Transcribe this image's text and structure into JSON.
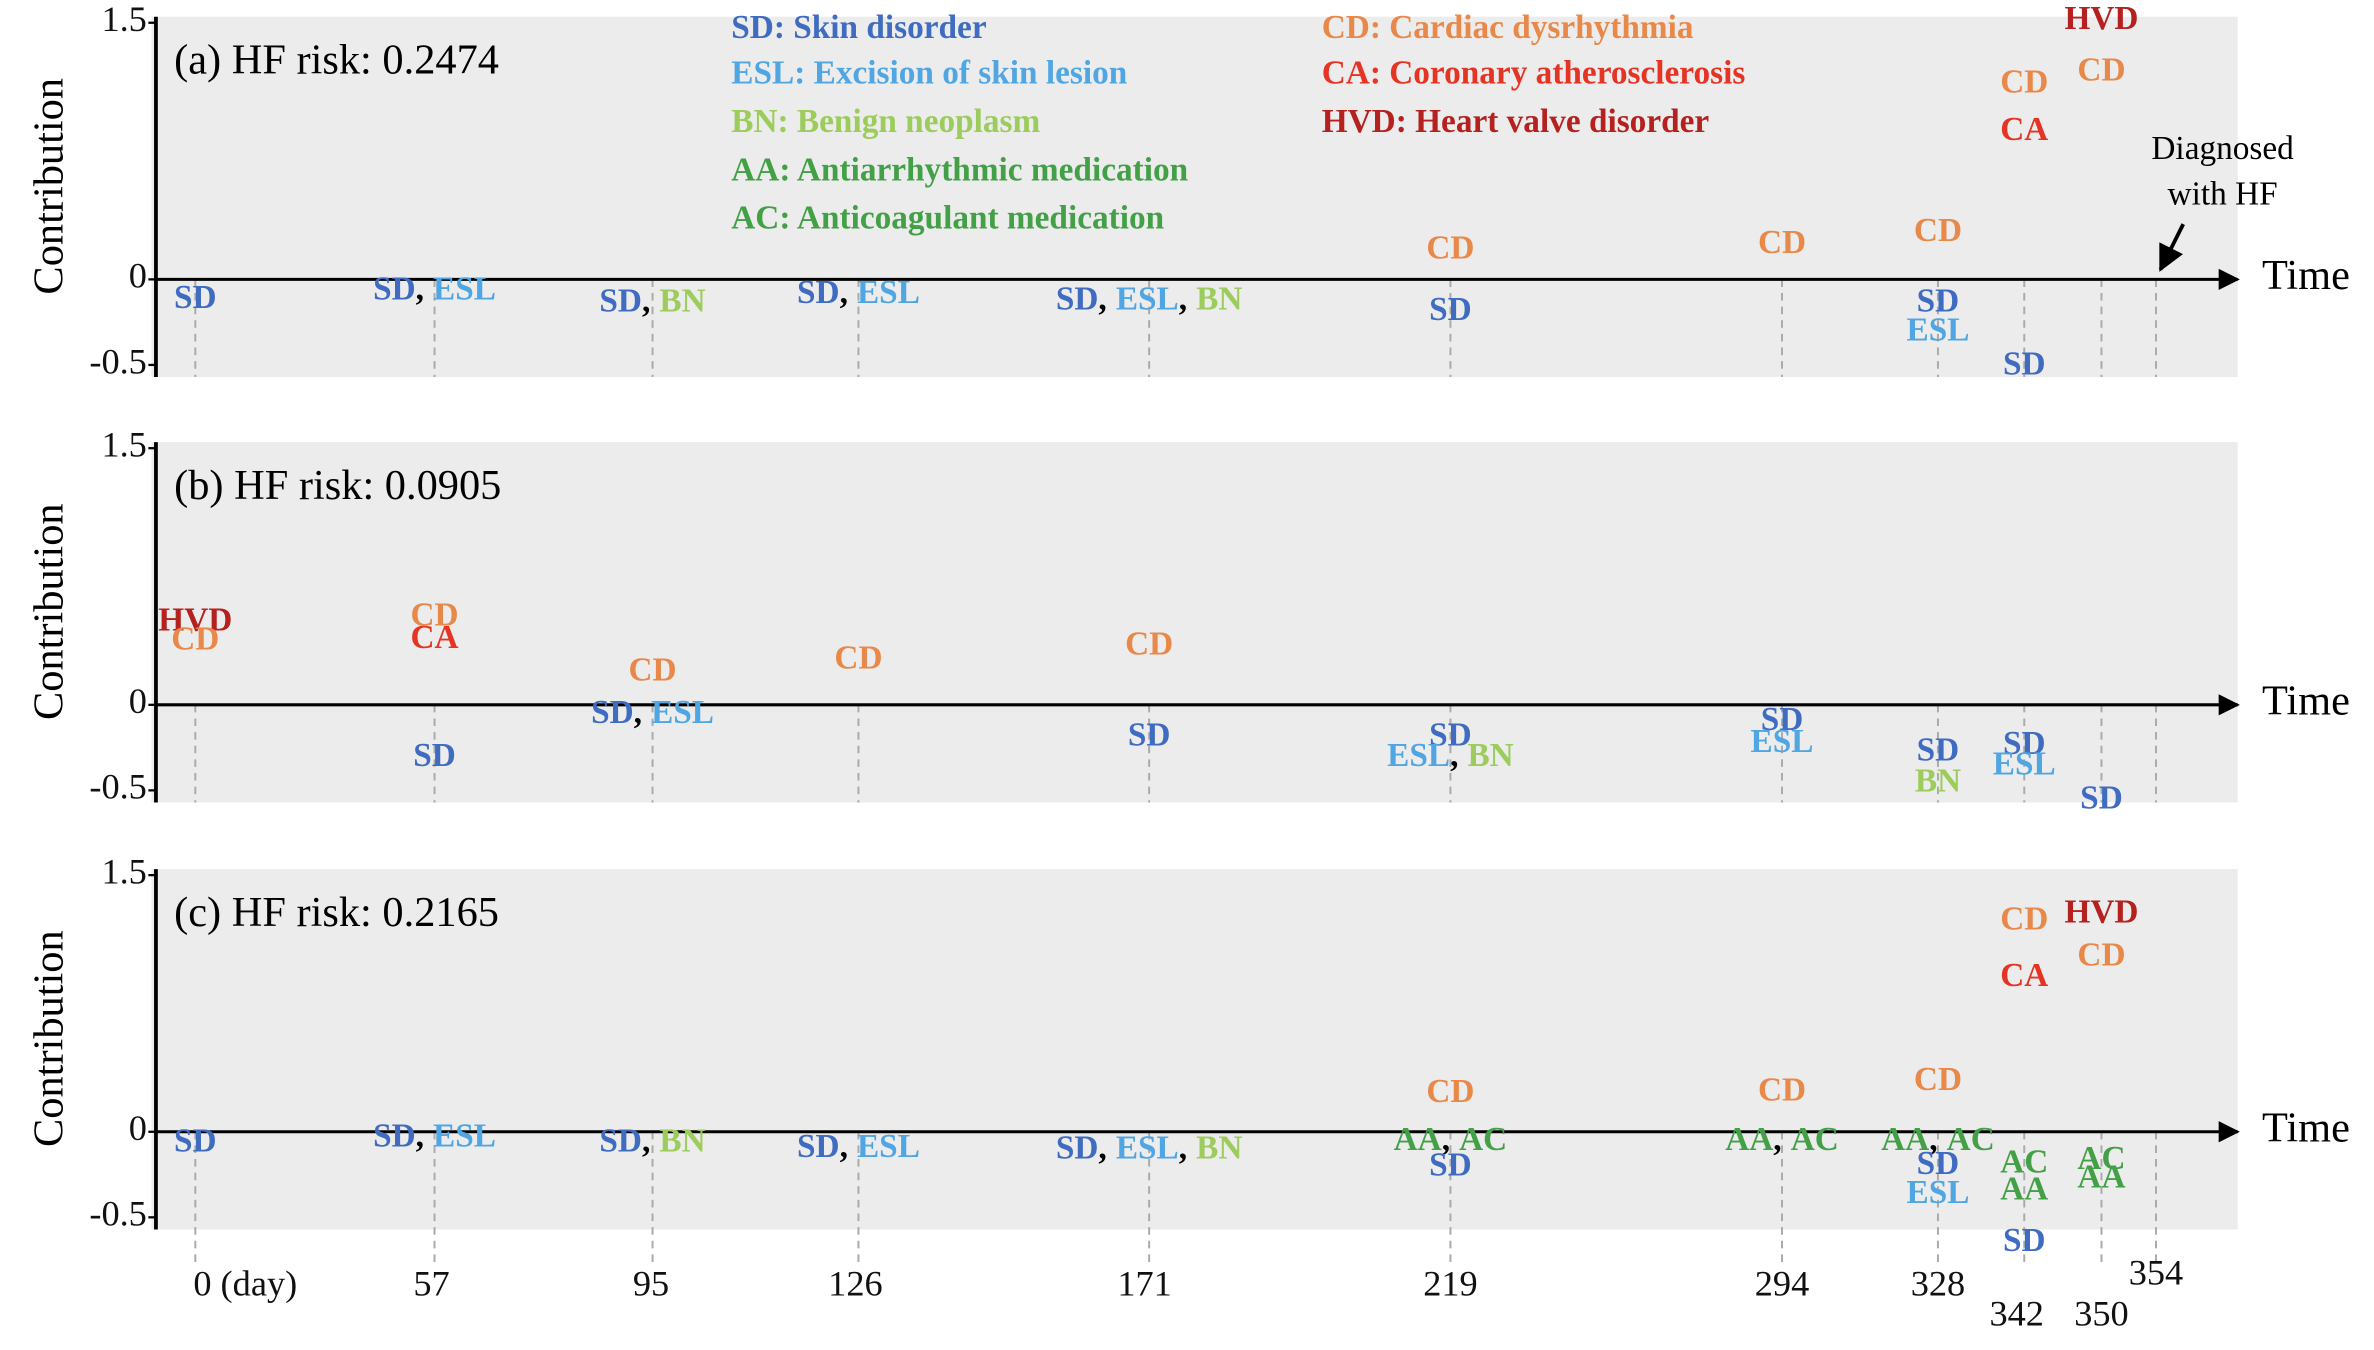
{
  "chart_data": [
    {
      "type": "timeline",
      "title": "(a) HF risk: 0.2474",
      "y_label": "Contribution",
      "x_label": "Time",
      "ylim": [
        -0.5,
        1.5
      ],
      "yticks": [
        1.5,
        0,
        -0.5
      ],
      "legend": [
        {
          "name": "SD: Skin disorder",
          "color": "#3f6cc0"
        },
        {
          "name": "ESL: Excision of skin lesion",
          "color": "#4fa6e3"
        },
        {
          "name": "BN: Benign neoplasm",
          "color": "#9ccc5c"
        },
        {
          "name": "AA: Antiarrhythmic medication",
          "color": "#43a047"
        },
        {
          "name": "AC: Anticoagulant medication",
          "color": "#43a047"
        },
        {
          "name": "CD: Cardiac dysrhythmia",
          "color": "#e8894a"
        },
        {
          "name": "CA: Coronary atherosclerosis",
          "color": "#e53324"
        },
        {
          "name": "HVD: Heart valve disorder",
          "color": "#b5211e"
        }
      ],
      "annotation": [
        "Diagnosed",
        "with HF"
      ],
      "items": [
        {
          "x": 0,
          "y": -0.12,
          "labels": [
            "SD"
          ]
        },
        {
          "x": 57,
          "y": -0.07,
          "labels": [
            "SD",
            "ESL"
          ]
        },
        {
          "x": 95,
          "y": -0.14,
          "labels": [
            "SD",
            "BN"
          ]
        },
        {
          "x": 126,
          "y": -0.09,
          "labels": [
            "SD",
            "ESL"
          ]
        },
        {
          "x": 171,
          "y": -0.13,
          "labels": [
            "SD",
            "ESL",
            "BN"
          ]
        },
        {
          "x": 219,
          "y": 0.17,
          "labels": [
            "CD"
          ]
        },
        {
          "x": 219,
          "y": -0.19,
          "labels": [
            "SD"
          ]
        },
        {
          "x": 294,
          "y": 0.2,
          "labels": [
            "CD"
          ]
        },
        {
          "x": 328,
          "y": 0.27,
          "labels": [
            "CD"
          ]
        },
        {
          "x": 328,
          "y": -0.14,
          "labels": [
            "SD"
          ]
        },
        {
          "x": 328,
          "y": -0.31,
          "labels": [
            "ESL"
          ]
        },
        {
          "x": 342,
          "y": 1.14,
          "labels": [
            "CD"
          ]
        },
        {
          "x": 342,
          "y": 0.86,
          "labels": [
            "CA"
          ]
        },
        {
          "x": 342,
          "y": -0.51,
          "labels": [
            "SD"
          ]
        },
        {
          "x": 350,
          "y": 1.51,
          "labels": [
            "HVD"
          ]
        },
        {
          "x": 350,
          "y": 1.21,
          "labels": [
            "CD"
          ]
        }
      ]
    },
    {
      "type": "timeline",
      "title": "(b) HF risk: 0.0905",
      "y_label": "Contribution",
      "x_label": "Time",
      "ylim": [
        -0.5,
        1.5
      ],
      "yticks": [
        1.5,
        0,
        -0.5
      ],
      "items": [
        {
          "x": 0,
          "y": 0.48,
          "labels": [
            "HVD"
          ]
        },
        {
          "x": 0,
          "y": 0.37,
          "labels": [
            "CD"
          ]
        },
        {
          "x": 57,
          "y": 0.51,
          "labels": [
            "CD"
          ]
        },
        {
          "x": 57,
          "y": 0.38,
          "labels": [
            "CA"
          ]
        },
        {
          "x": 57,
          "y": -0.31,
          "labels": [
            "SD"
          ]
        },
        {
          "x": 95,
          "y": 0.19,
          "labels": [
            "CD"
          ]
        },
        {
          "x": 95,
          "y": -0.06,
          "labels": [
            "SD",
            "ESL"
          ]
        },
        {
          "x": 126,
          "y": 0.26,
          "labels": [
            "CD"
          ]
        },
        {
          "x": 171,
          "y": 0.34,
          "labels": [
            "CD"
          ]
        },
        {
          "x": 171,
          "y": -0.19,
          "labels": [
            "SD"
          ]
        },
        {
          "x": 219,
          "y": -0.19,
          "labels": [
            "SD"
          ]
        },
        {
          "x": 219,
          "y": -0.31,
          "labels": [
            "ESL",
            "BN"
          ]
        },
        {
          "x": 294,
          "y": -0.1,
          "labels": [
            "SD"
          ]
        },
        {
          "x": 294,
          "y": -0.23,
          "labels": [
            "ESL"
          ]
        },
        {
          "x": 328,
          "y": -0.28,
          "labels": [
            "SD"
          ]
        },
        {
          "x": 328,
          "y": -0.46,
          "labels": [
            "BN"
          ]
        },
        {
          "x": 342,
          "y": -0.24,
          "labels": [
            "SD"
          ]
        },
        {
          "x": 342,
          "y": -0.36,
          "labels": [
            "ESL"
          ]
        },
        {
          "x": 350,
          "y": -0.56,
          "labels": [
            "SD"
          ]
        }
      ]
    },
    {
      "type": "timeline",
      "title": "(c) HF risk: 0.2165",
      "y_label": "Contribution",
      "x_label": "Time",
      "ylim": [
        -0.5,
        1.5
      ],
      "yticks": [
        1.5,
        0,
        -0.5
      ],
      "xticks": [
        {
          "value": 0,
          "label": "0 (day)"
        },
        57,
        95,
        126,
        171,
        219,
        294,
        328,
        342,
        350,
        354
      ],
      "separator": ",",
      "items": [
        {
          "x": 0,
          "y": -0.07,
          "labels": [
            "SD"
          ]
        },
        {
          "x": 57,
          "y": -0.04,
          "labels": [
            "SD",
            "ESL"
          ]
        },
        {
          "x": 95,
          "y": -0.07,
          "labels": [
            "SD",
            "BN"
          ]
        },
        {
          "x": 126,
          "y": -0.1,
          "labels": [
            "SD",
            "ESL"
          ]
        },
        {
          "x": 171,
          "y": -0.11,
          "labels": [
            "SD",
            "ESL",
            "BN"
          ]
        },
        {
          "x": 219,
          "y": 0.22,
          "labels": [
            "CD"
          ]
        },
        {
          "x": 219,
          "y": -0.06,
          "labels": [
            "AA",
            "AC"
          ]
        },
        {
          "x": 219,
          "y": -0.21,
          "labels": [
            "SD"
          ]
        },
        {
          "x": 294,
          "y": 0.23,
          "labels": [
            "CD"
          ]
        },
        {
          "x": 294,
          "y": -0.06,
          "labels": [
            "AA",
            "AC"
          ]
        },
        {
          "x": 328,
          "y": 0.29,
          "labels": [
            "CD"
          ]
        },
        {
          "x": 328,
          "y": -0.06,
          "labels": [
            "AA",
            "AC"
          ]
        },
        {
          "x": 328,
          "y": -0.2,
          "labels": [
            "SD"
          ]
        },
        {
          "x": 328,
          "y": -0.37,
          "labels": [
            "ESL"
          ]
        },
        {
          "x": 342,
          "y": 1.23,
          "labels": [
            "CD"
          ]
        },
        {
          "x": 342,
          "y": 0.9,
          "labels": [
            "CA"
          ]
        },
        {
          "x": 342,
          "y": -0.19,
          "labels": [
            "AC"
          ]
        },
        {
          "x": 342,
          "y": -0.35,
          "labels": [
            "AA"
          ]
        },
        {
          "x": 342,
          "y": -0.65,
          "labels": [
            "SD"
          ]
        },
        {
          "x": 350,
          "y": 1.27,
          "labels": [
            "HVD"
          ]
        },
        {
          "x": 350,
          "y": 1.02,
          "labels": [
            "CD"
          ]
        },
        {
          "x": 350,
          "y": -0.17,
          "labels": [
            "AC"
          ]
        },
        {
          "x": 350,
          "y": -0.28,
          "labels": [
            "AA"
          ]
        }
      ]
    }
  ]
}
